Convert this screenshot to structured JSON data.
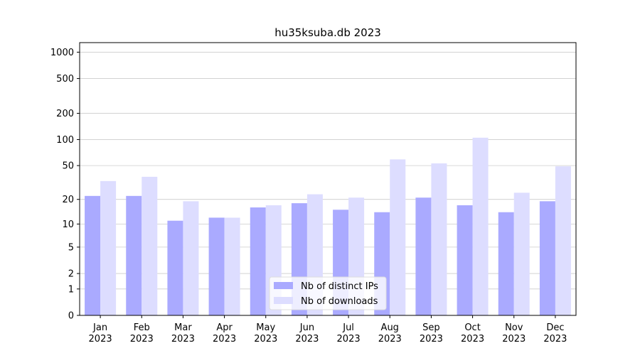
{
  "chart_data": {
    "type": "bar",
    "title": "hu35ksuba.db 2023",
    "categories": [
      "Jan 2023",
      "Feb 2023",
      "Mar 2023",
      "Apr 2023",
      "May 2023",
      "Jun 2023",
      "Jul 2023",
      "Aug 2023",
      "Sep 2023",
      "Oct 2023",
      "Nov 2023",
      "Dec 2023"
    ],
    "series": [
      {
        "name": "Nb of distinct IPs",
        "color": "#aaaaff",
        "values": [
          22,
          22,
          11,
          12,
          16,
          18,
          15,
          14,
          21,
          17,
          14,
          19
        ]
      },
      {
        "name": "Nb of downloads",
        "color": "#ddddff",
        "values": [
          33,
          37,
          19,
          12,
          17,
          23,
          21,
          59,
          53,
          105,
          24,
          49
        ]
      }
    ],
    "yscale": "log1p",
    "ylim": [
      0,
      1285
    ],
    "yticks": [
      0,
      1,
      2,
      5,
      10,
      20,
      50,
      100,
      200,
      500,
      1000
    ],
    "grid": true,
    "legend": "lower center"
  }
}
